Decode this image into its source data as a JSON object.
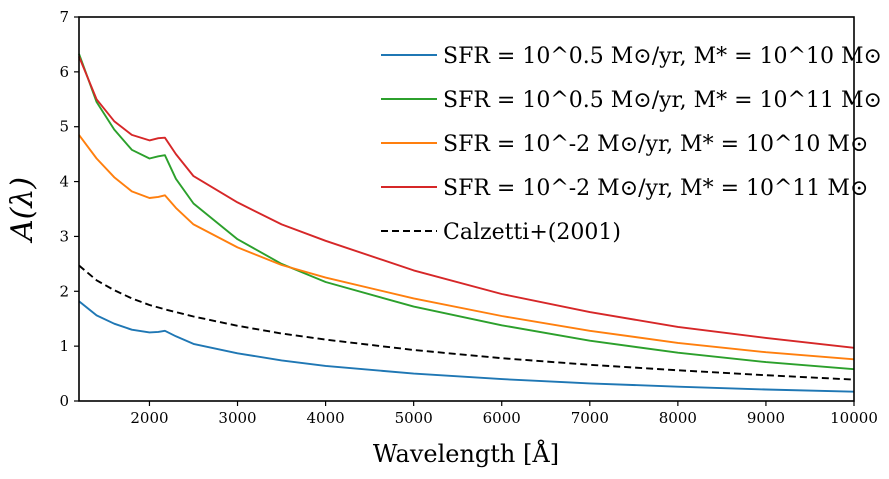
{
  "chart_data": {
    "type": "line",
    "xlabel": "Wavelength [Å]",
    "ylabel": "A(λ)",
    "xlim": [
      1200,
      10000
    ],
    "ylim": [
      0,
      7
    ],
    "xticks": [
      2000,
      3000,
      4000,
      5000,
      6000,
      7000,
      8000,
      9000,
      10000
    ],
    "yticks": [
      0,
      1,
      2,
      3,
      4,
      5,
      6,
      7
    ],
    "grid": false,
    "legend_position": "top-right",
    "series": [
      {
        "name": "SFR = 10^0.5 M⊙/yr, M* = 10^10 M⊙",
        "color": "#1f77b4",
        "dash": "solid",
        "points": [
          [
            1200,
            1.82
          ],
          [
            1400,
            1.56
          ],
          [
            1600,
            1.41
          ],
          [
            1800,
            1.3
          ],
          [
            2000,
            1.25
          ],
          [
            2100,
            1.26
          ],
          [
            2175,
            1.28
          ],
          [
            2300,
            1.18
          ],
          [
            2500,
            1.04
          ],
          [
            3000,
            0.87
          ],
          [
            3500,
            0.74
          ],
          [
            4000,
            0.64
          ],
          [
            5000,
            0.5
          ],
          [
            6000,
            0.4
          ],
          [
            7000,
            0.32
          ],
          [
            8000,
            0.26
          ],
          [
            9000,
            0.21
          ],
          [
            10000,
            0.17
          ]
        ]
      },
      {
        "name": "SFR = 10^0.5 M⊙/yr, M* = 10^11 M⊙",
        "color": "#2ca02c",
        "dash": "solid",
        "points": [
          [
            1200,
            6.33
          ],
          [
            1400,
            5.45
          ],
          [
            1600,
            4.95
          ],
          [
            1800,
            4.58
          ],
          [
            2000,
            4.42
          ],
          [
            2100,
            4.46
          ],
          [
            2175,
            4.48
          ],
          [
            2300,
            4.05
          ],
          [
            2500,
            3.6
          ],
          [
            3000,
            2.95
          ],
          [
            3500,
            2.5
          ],
          [
            4000,
            2.17
          ],
          [
            5000,
            1.72
          ],
          [
            6000,
            1.38
          ],
          [
            7000,
            1.1
          ],
          [
            8000,
            0.88
          ],
          [
            9000,
            0.71
          ],
          [
            10000,
            0.58
          ]
        ]
      },
      {
        "name": "SFR = 10^-2 M⊙/yr, M* = 10^10 M⊙",
        "color": "#ff7f0e",
        "dash": "solid",
        "points": [
          [
            1200,
            4.85
          ],
          [
            1400,
            4.42
          ],
          [
            1600,
            4.08
          ],
          [
            1800,
            3.82
          ],
          [
            2000,
            3.7
          ],
          [
            2100,
            3.72
          ],
          [
            2175,
            3.75
          ],
          [
            2300,
            3.52
          ],
          [
            2500,
            3.22
          ],
          [
            3000,
            2.8
          ],
          [
            3500,
            2.48
          ],
          [
            4000,
            2.25
          ],
          [
            5000,
            1.87
          ],
          [
            6000,
            1.55
          ],
          [
            7000,
            1.28
          ],
          [
            8000,
            1.06
          ],
          [
            9000,
            0.89
          ],
          [
            10000,
            0.76
          ]
        ]
      },
      {
        "name": "SFR = 10^-2 M⊙/yr, M* = 10^11 M⊙",
        "color": "#d62728",
        "dash": "solid",
        "points": [
          [
            1200,
            6.28
          ],
          [
            1400,
            5.5
          ],
          [
            1600,
            5.1
          ],
          [
            1800,
            4.85
          ],
          [
            2000,
            4.75
          ],
          [
            2100,
            4.79
          ],
          [
            2175,
            4.8
          ],
          [
            2300,
            4.5
          ],
          [
            2500,
            4.1
          ],
          [
            3000,
            3.62
          ],
          [
            3500,
            3.22
          ],
          [
            4000,
            2.92
          ],
          [
            5000,
            2.38
          ],
          [
            6000,
            1.95
          ],
          [
            7000,
            1.62
          ],
          [
            8000,
            1.35
          ],
          [
            9000,
            1.15
          ],
          [
            10000,
            0.97
          ]
        ]
      },
      {
        "name": "Calzetti+(2001)",
        "color": "#000000",
        "dash": "dashed",
        "points": [
          [
            1200,
            2.47
          ],
          [
            1400,
            2.2
          ],
          [
            1600,
            2.02
          ],
          [
            1800,
            1.87
          ],
          [
            2000,
            1.75
          ],
          [
            2200,
            1.66
          ],
          [
            2500,
            1.54
          ],
          [
            3000,
            1.37
          ],
          [
            3500,
            1.23
          ],
          [
            4000,
            1.12
          ],
          [
            5000,
            0.93
          ],
          [
            6000,
            0.78
          ],
          [
            7000,
            0.66
          ],
          [
            8000,
            0.56
          ],
          [
            9000,
            0.47
          ],
          [
            10000,
            0.39
          ]
        ]
      }
    ]
  }
}
